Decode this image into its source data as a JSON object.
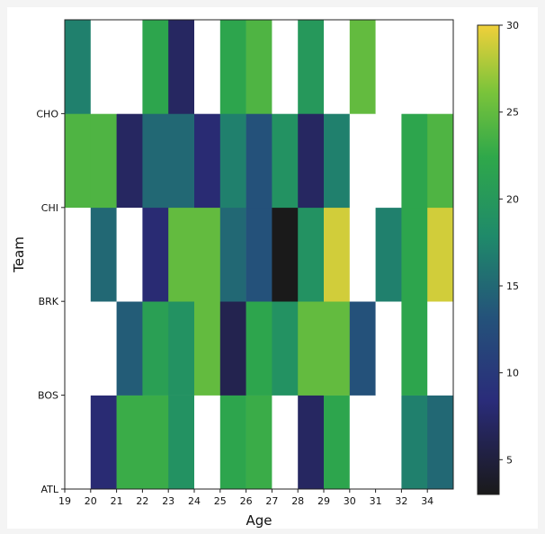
{
  "chart_data": {
    "type": "heatmap",
    "title": "",
    "xlabel": "Age",
    "ylabel": "Team",
    "x_tick_labels": [
      "19",
      "20",
      "21",
      "22",
      "23",
      "24",
      "25",
      "26",
      "27",
      "28",
      "29",
      "30",
      "31",
      "32",
      "34"
    ],
    "y_tick_labels": [
      "ATL",
      "BOS",
      "BRK",
      "CHI",
      "CHO"
    ],
    "rows": [
      "ATL",
      "BOS",
      "BRK",
      "CHI",
      "CHO"
    ],
    "columns": [
      "19",
      "20",
      "21",
      "22",
      "23",
      "24",
      "25",
      "26",
      "27",
      "28",
      "29",
      "30",
      "31",
      "32",
      "34"
    ],
    "values": [
      [
        null,
        8,
        23,
        23,
        19,
        null,
        22,
        23,
        null,
        7,
        22,
        null,
        null,
        17,
        15
      ],
      [
        null,
        null,
        14,
        21,
        19,
        25,
        6,
        22,
        19,
        25,
        25,
        13,
        null,
        22,
        null
      ],
      [
        null,
        15,
        null,
        8,
        25,
        25,
        15,
        13,
        3,
        19,
        29,
        null,
        17,
        22,
        29
      ],
      [
        24,
        24,
        7,
        15,
        15,
        8,
        17,
        13,
        19,
        7,
        17,
        null,
        null,
        22,
        24
      ],
      [
        17,
        null,
        null,
        22,
        7,
        null,
        22,
        24,
        null,
        20,
        null,
        25,
        null,
        null,
        null
      ]
    ],
    "colorbar": {
      "min": 3,
      "max": 30,
      "tick_labels": [
        "5",
        "10",
        "15",
        "20",
        "25",
        "30"
      ],
      "colormap": "viridis"
    },
    "missing_color": "#ffffff",
    "grid": false
  }
}
